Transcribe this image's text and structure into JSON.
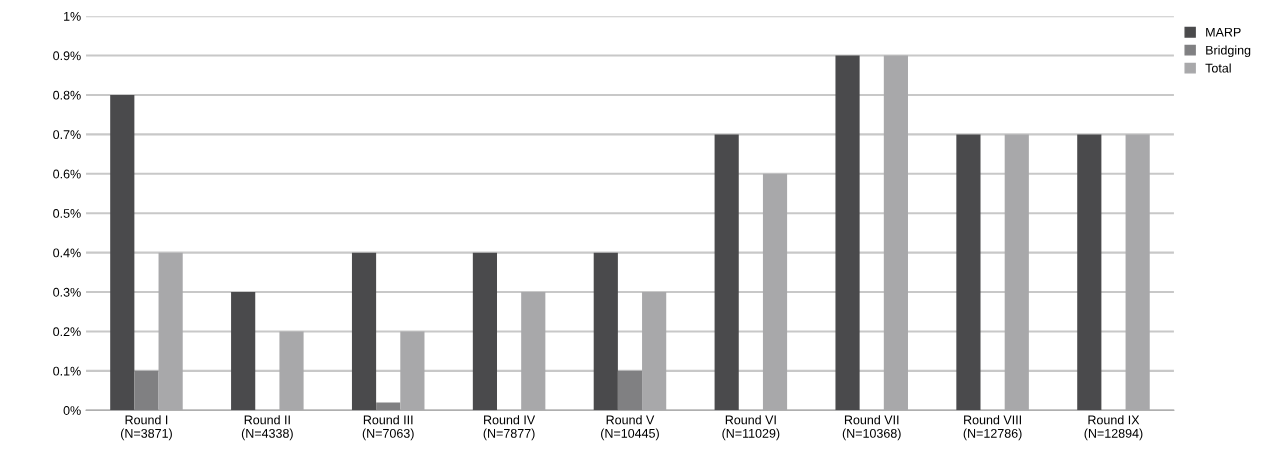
{
  "chart_data": {
    "type": "bar",
    "categories": [
      "Round I\n(N=3871)",
      "Round II\n(N=4338)",
      "Round III\n(N=7063)",
      "Round IV\n(N=7877)",
      "Round V\n(N=10445)",
      "Round VI\n(N=11029)",
      "Round VII\n(N=10368)",
      "Round VIII\n(N=12786)",
      "Round IX\n(N=12894)"
    ],
    "series": [
      {
        "name": "MARP",
        "color": "#4a4a4c",
        "values": [
          0.8,
          0.3,
          0.4,
          0.4,
          0.4,
          0.7,
          0.9,
          0.7,
          0.7
        ]
      },
      {
        "name": "Bridging",
        "color": "#808082",
        "values": [
          0.1,
          0,
          0.02,
          0,
          0.1,
          0,
          0,
          0,
          0
        ]
      },
      {
        "name": "Total",
        "color": "#a8a8aa",
        "values": [
          0.4,
          0.2,
          0.2,
          0.3,
          0.3,
          0.6,
          0.9,
          0.7,
          0.7
        ]
      }
    ],
    "ylim": [
      0,
      1
    ],
    "yticks": [
      {
        "value": 0,
        "label": "0%"
      },
      {
        "value": 0.1,
        "label": "0.1%"
      },
      {
        "value": 0.2,
        "label": "0.2%"
      },
      {
        "value": 0.3,
        "label": "0.3%"
      },
      {
        "value": 0.4,
        "label": "0.4%"
      },
      {
        "value": 0.5,
        "label": "0.5%"
      },
      {
        "value": 0.6,
        "label": "0.6%"
      },
      {
        "value": 0.7,
        "label": "0.7%"
      },
      {
        "value": 0.8,
        "label": "0.8%"
      },
      {
        "value": 0.9,
        "label": "0.9%"
      },
      {
        "value": 1,
        "label": "1%"
      }
    ],
    "grid": "y",
    "legend": "top right"
  }
}
